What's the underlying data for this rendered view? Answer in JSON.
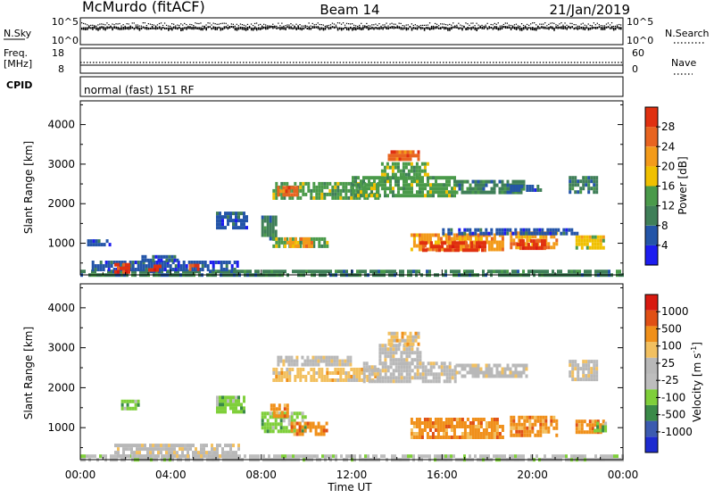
{
  "header": {
    "station": "McMurdo (fitACF)",
    "beam": "Beam 14",
    "date": "21/Jan/2019"
  },
  "top_panels": {
    "nsky": {
      "label": "N.Sky",
      "ticks": [
        "10^5",
        "10^0"
      ],
      "right_ticks": [
        "10^5",
        "10^0"
      ],
      "right_label": "N.Search"
    },
    "freq": {
      "label_line1": "Freq.",
      "label_line2": "[MHz]",
      "ticks": [
        "18",
        "8"
      ],
      "right_ticks": [
        "60",
        "0"
      ],
      "right_label": "Nave"
    },
    "cpid": {
      "label": "CPID",
      "value": "normal (fast) 151 RF"
    }
  },
  "colors": {
    "power": [
      "#1d1df0",
      "#2455a8",
      "#3f7f58",
      "#4a9a4a",
      "#f0c000",
      "#f39b1a",
      "#e86420",
      "#e03010",
      "#d81a10"
    ],
    "velocity": [
      "#d81a10",
      "#e05015",
      "#f0901a",
      "#f2c060",
      "#b8b8b8",
      "#bdbdbd",
      "#7fcf3a",
      "#3a8a48",
      "#3c5bb0",
      "#1d2bd0"
    ]
  },
  "chart_data": [
    {
      "type": "heatmap",
      "name": "power",
      "ylabel": "Slant Range [km]",
      "yticks": [
        1000,
        2000,
        3000,
        4000
      ],
      "ylim": [
        200,
        4600
      ],
      "xlim": [
        0,
        24
      ],
      "colorbar": {
        "label": "Power [dB]",
        "ticks": [
          "28",
          "24",
          "20",
          "16",
          "12",
          "8",
          "4"
        ],
        "range": [
          0,
          32
        ]
      },
      "patches": [
        {
          "t0": 0.0,
          "t1": 24.0,
          "r0": 220,
          "r1": 330,
          "v": 9
        },
        {
          "t0": 0.5,
          "t1": 7.0,
          "r0": 330,
          "r1": 560,
          "v": 5
        },
        {
          "t0": 1.5,
          "t1": 2.2,
          "r0": 280,
          "r1": 500,
          "v": 28
        },
        {
          "t0": 3.0,
          "t1": 3.5,
          "r0": 280,
          "r1": 460,
          "v": 26
        },
        {
          "t0": 4.8,
          "t1": 5.2,
          "r0": 300,
          "r1": 480,
          "v": 24
        },
        {
          "t0": 2.7,
          "t1": 4.3,
          "r0": 560,
          "r1": 700,
          "v": 6
        },
        {
          "t0": 0.3,
          "t1": 1.3,
          "r0": 950,
          "r1": 1100,
          "v": 6
        },
        {
          "t0": 6.0,
          "t1": 7.4,
          "r0": 1350,
          "r1": 1800,
          "v": 7
        },
        {
          "t0": 8.0,
          "t1": 8.7,
          "r0": 1100,
          "r1": 1700,
          "v": 8
        },
        {
          "t0": 8.5,
          "t1": 10.9,
          "r0": 880,
          "r1": 1150,
          "v": 14
        },
        {
          "t0": 9.0,
          "t1": 10.3,
          "r0": 950,
          "r1": 1150,
          "v": 18
        },
        {
          "t0": 8.5,
          "t1": 13.2,
          "r0": 2150,
          "r1": 2550,
          "v": 11
        },
        {
          "t0": 8.7,
          "t1": 9.6,
          "r0": 2250,
          "r1": 2450,
          "v": 24
        },
        {
          "t0": 12.0,
          "t1": 16.6,
          "r0": 2200,
          "r1": 2700,
          "v": 13
        },
        {
          "t0": 13.3,
          "t1": 15.4,
          "r0": 2650,
          "r1": 3050,
          "v": 12
        },
        {
          "t0": 13.6,
          "t1": 15.0,
          "r0": 3150,
          "r1": 3350,
          "v": 24
        },
        {
          "t0": 16.6,
          "t1": 19.6,
          "r0": 2300,
          "r1": 2600,
          "v": 10
        },
        {
          "t0": 19.0,
          "t1": 20.5,
          "r0": 2350,
          "r1": 2480,
          "v": 6
        },
        {
          "t0": 21.6,
          "t1": 22.9,
          "r0": 2300,
          "r1": 2700,
          "v": 9
        },
        {
          "t0": 14.6,
          "t1": 18.7,
          "r0": 800,
          "r1": 1250,
          "v": 20
        },
        {
          "t0": 15.0,
          "t1": 17.9,
          "r0": 850,
          "r1": 1050,
          "v": 26
        },
        {
          "t0": 19.0,
          "t1": 21.1,
          "r0": 850,
          "r1": 1300,
          "v": 20
        },
        {
          "t0": 19.3,
          "t1": 20.6,
          "r0": 900,
          "r1": 1100,
          "v": 26
        },
        {
          "t0": 21.9,
          "t1": 23.1,
          "r0": 880,
          "r1": 1200,
          "v": 16
        },
        {
          "t0": 16.0,
          "t1": 22.0,
          "r0": 1280,
          "r1": 1380,
          "v": 6
        }
      ]
    },
    {
      "type": "heatmap",
      "name": "velocity",
      "ylabel": "Slant Range [km]",
      "xlabel": "Time UT",
      "xticks": [
        "00:00",
        "04:00",
        "08:00",
        "12:00",
        "16:00",
        "20:00",
        "00:00"
      ],
      "yticks": [
        1000,
        2000,
        3000,
        4000
      ],
      "ylim": [
        200,
        4600
      ],
      "xlim": [
        0,
        24
      ],
      "colorbar": {
        "label": "Velocity [m s",
        "label_sup": "-1",
        "label_end": "]",
        "ticks": [
          "1000",
          "500",
          "100",
          "25",
          "-25",
          "-100",
          "-500",
          "-1000"
        ]
      },
      "patches": [
        {
          "t0": 0.0,
          "t1": 24.0,
          "r0": 220,
          "r1": 330,
          "v": 5
        },
        {
          "t0": 1.5,
          "t1": 7.0,
          "r0": 330,
          "r1": 600,
          "v": 4
        },
        {
          "t0": 1.8,
          "t1": 2.6,
          "r0": 1500,
          "r1": 1700,
          "v": 6
        },
        {
          "t0": 6.0,
          "t1": 7.3,
          "r0": 1400,
          "r1": 1800,
          "v": 6
        },
        {
          "t0": 8.0,
          "t1": 10.0,
          "r0": 950,
          "r1": 1400,
          "v": 6
        },
        {
          "t0": 8.4,
          "t1": 9.2,
          "r0": 1300,
          "r1": 1600,
          "v": 2
        },
        {
          "t0": 9.3,
          "t1": 10.9,
          "r0": 850,
          "r1": 1150,
          "v": 2
        },
        {
          "t0": 8.5,
          "t1": 13.2,
          "r0": 2150,
          "r1": 2500,
          "v": 3
        },
        {
          "t0": 8.7,
          "t1": 12.0,
          "r0": 2550,
          "r1": 2800,
          "v": 4
        },
        {
          "t0": 12.5,
          "t1": 16.6,
          "r0": 2150,
          "r1": 2650,
          "v": 4
        },
        {
          "t0": 13.2,
          "t1": 15.0,
          "r0": 2650,
          "r1": 3100,
          "v": 4
        },
        {
          "t0": 13.6,
          "t1": 15.0,
          "r0": 3100,
          "r1": 3400,
          "v": 3
        },
        {
          "t0": 16.6,
          "t1": 19.7,
          "r0": 2300,
          "r1": 2600,
          "v": 4
        },
        {
          "t0": 21.6,
          "t1": 22.9,
          "r0": 2200,
          "r1": 2700,
          "v": 4
        },
        {
          "t0": 14.6,
          "t1": 18.7,
          "r0": 800,
          "r1": 1250,
          "v": 2
        },
        {
          "t0": 19.0,
          "t1": 21.1,
          "r0": 850,
          "r1": 1300,
          "v": 2
        },
        {
          "t0": 21.9,
          "t1": 23.1,
          "r0": 880,
          "r1": 1200,
          "v": 2
        },
        {
          "t0": 22.7,
          "t1": 23.2,
          "r0": 950,
          "r1": 1150,
          "v": 6
        }
      ]
    }
  ]
}
